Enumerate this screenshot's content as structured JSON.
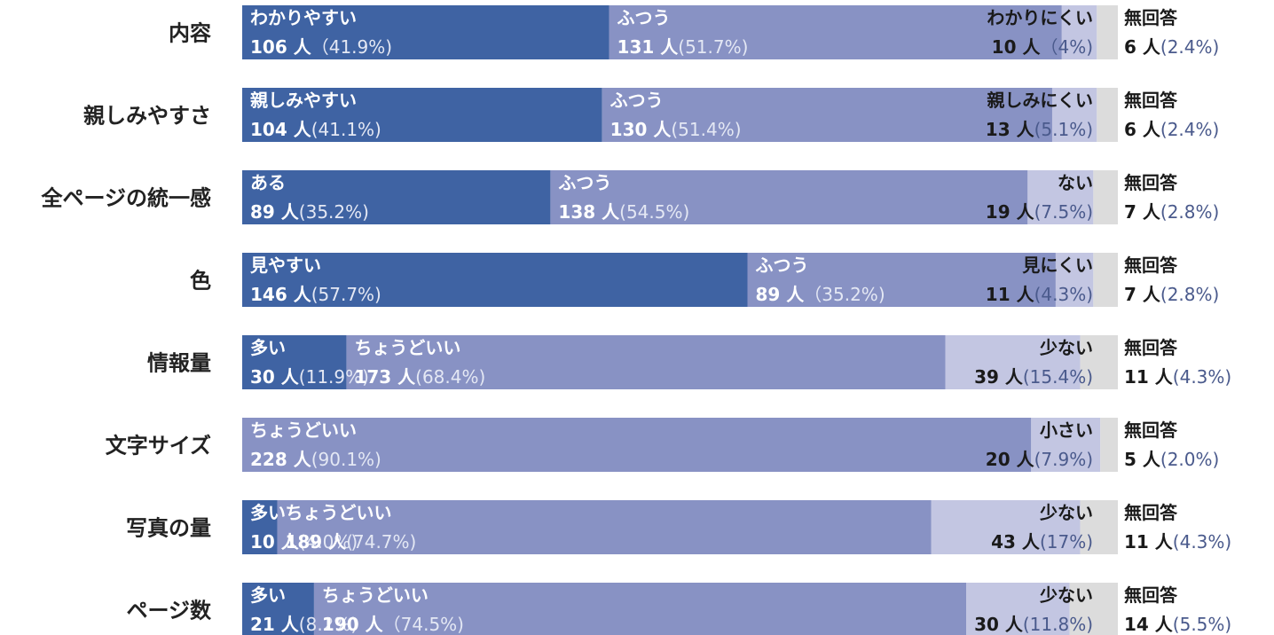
{
  "chart_data": {
    "type": "bar",
    "subtype": "stacked-horizontal-100",
    "categories": [
      "内容",
      "親しみやすさ",
      "全ページの統一感",
      "色",
      "情報量",
      "文字サイズ",
      "写真の量",
      "ページ数"
    ],
    "rows": [
      {
        "category": "内容",
        "segments": [
          {
            "label": "わかりやすい",
            "count": "106 人",
            "pct": "（41.9%)",
            "value": 41.9
          },
          {
            "label": "ふつう",
            "count": "131 人",
            "pct": "(51.7%)",
            "value": 51.7
          },
          {
            "label": "わかりにくい",
            "count": "10 人",
            "pct": "（4%)",
            "value": 4.0
          },
          {
            "label": "無回答",
            "count": "6 人",
            "pct": "(2.4%)",
            "value": 2.4
          }
        ]
      },
      {
        "category": "親しみやすさ",
        "segments": [
          {
            "label": "親しみやすい",
            "count": "104 人",
            "pct": "(41.1%)",
            "value": 41.1
          },
          {
            "label": "ふつう",
            "count": "130 人",
            "pct": "(51.4%)",
            "value": 51.4
          },
          {
            "label": "親しみにくい",
            "count": "13 人",
            "pct": "(5.1%)",
            "value": 5.1
          },
          {
            "label": "無回答",
            "count": "6 人",
            "pct": "(2.4%)",
            "value": 2.4
          }
        ]
      },
      {
        "category": "全ページの統一感",
        "segments": [
          {
            "label": "ある",
            "count": "89 人",
            "pct": "(35.2%)",
            "value": 35.2
          },
          {
            "label": "ふつう",
            "count": "138 人",
            "pct": "(54.5%)",
            "value": 54.5
          },
          {
            "label": "ない",
            "count": "19 人",
            "pct": "(7.5%)",
            "value": 7.5
          },
          {
            "label": "無回答",
            "count": "7 人",
            "pct": "(2.8%)",
            "value": 2.8
          }
        ]
      },
      {
        "category": "色",
        "segments": [
          {
            "label": "見やすい",
            "count": "146 人",
            "pct": "(57.7%)",
            "value": 57.7
          },
          {
            "label": "ふつう",
            "count": "89 人",
            "pct": "（35.2%)",
            "value": 35.2
          },
          {
            "label": "見にくい",
            "count": "11 人",
            "pct": "(4.3%)",
            "value": 4.3
          },
          {
            "label": "無回答",
            "count": "7 人",
            "pct": "(2.8%)",
            "value": 2.8
          }
        ]
      },
      {
        "category": "情報量",
        "segments": [
          {
            "label": "多い",
            "count": "30 人",
            "pct": "(11.9%)",
            "value": 11.9
          },
          {
            "label": "ちょうどいい",
            "count": "173 人",
            "pct": "(68.4%)",
            "value": 68.4
          },
          {
            "label": "少ない",
            "count": "39 人",
            "pct": "(15.4%)",
            "value": 15.4
          },
          {
            "label": "無回答",
            "count": "11 人",
            "pct": "(4.3%)",
            "value": 4.3
          }
        ]
      },
      {
        "category": "文字サイズ",
        "segments": [
          {
            "label": "ちょうどいい",
            "count": "228 人",
            "pct": "(90.1%)",
            "value": 90.1
          },
          {
            "label": "小さい",
            "count": "20 人",
            "pct": "(7.9%)",
            "value": 7.9
          },
          {
            "label": "無回答",
            "count": "5 人",
            "pct": "(2.0%)",
            "value": 2.0
          }
        ]
      },
      {
        "category": "写真の量",
        "segments": [
          {
            "label": "多い",
            "count": "10 人",
            "pct": "(4.0%)",
            "value": 4.0
          },
          {
            "label": "ちょうどいい",
            "count": "189 人",
            "pct": "(74.7%)",
            "value": 74.7
          },
          {
            "label": "少ない",
            "count": "43 人",
            "pct": "(17%)",
            "value": 17.0
          },
          {
            "label": "無回答",
            "count": "11 人",
            "pct": "(4.3%)",
            "value": 4.3
          }
        ]
      },
      {
        "category": "ページ数",
        "segments": [
          {
            "label": "多い",
            "count": "21 人",
            "pct": "(8.2%)",
            "value": 8.2
          },
          {
            "label": "ちょうどいい",
            "count": "190 人",
            "pct": "（74.5%)",
            "value": 74.5
          },
          {
            "label": "少ない",
            "count": "30 人",
            "pct": "(11.8%)",
            "value": 11.8
          },
          {
            "label": "無回答",
            "count": "14 人",
            "pct": "(5.5%)",
            "value": 5.5
          }
        ]
      }
    ],
    "colors": {
      "positive": "#3f63a3",
      "neutral": "#8892c4",
      "negative": "#c3c6e2",
      "no_answer": "#dcdcdc",
      "text_on_dark": "#ffffff",
      "text_on_light": "#1a1a1a",
      "pct_on_dark": "#e4e8f4",
      "pct_on_light": "#4a5a8c"
    }
  }
}
